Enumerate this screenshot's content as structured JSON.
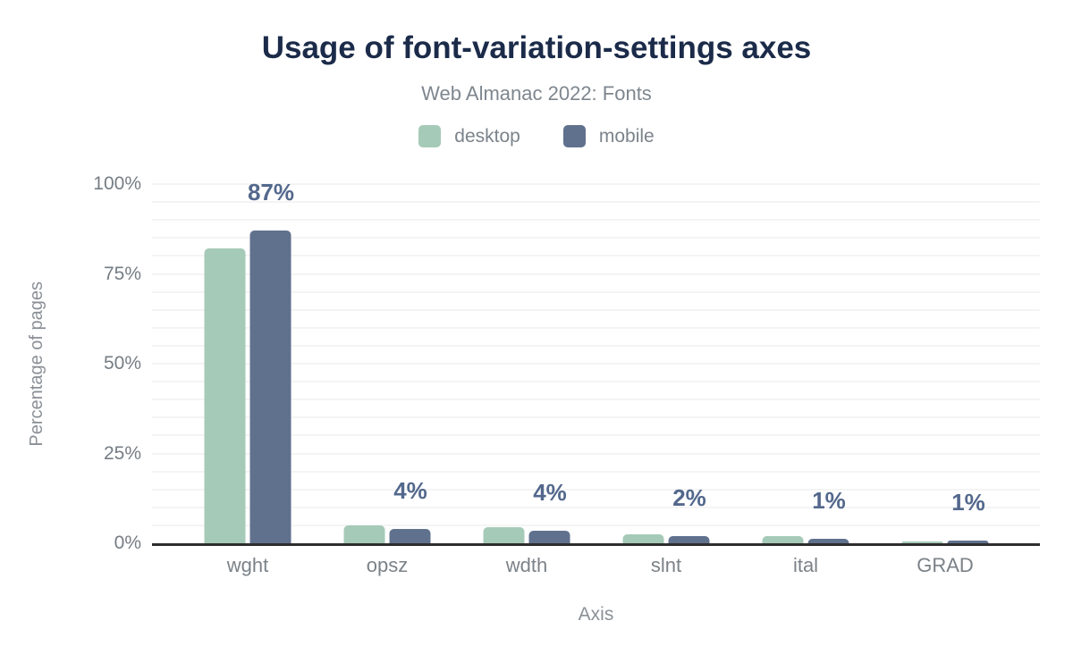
{
  "chart_data": {
    "type": "bar",
    "title": "Usage of font-variation-settings axes",
    "subtitle": "Web Almanac 2022: Fonts",
    "xlabel": "Axis",
    "ylabel": "Percentage of pages",
    "ylim": [
      0,
      100
    ],
    "y_ticks": [
      {
        "label": "0%",
        "pct": 0
      },
      {
        "label": "25%",
        "pct": 25
      },
      {
        "label": "50%",
        "pct": 50
      },
      {
        "label": "75%",
        "pct": 75
      },
      {
        "label": "100%",
        "pct": 100
      }
    ],
    "minor_gridline_step_pct": 5,
    "grid": true,
    "legend_position": "top",
    "categories": [
      "wght",
      "opsz",
      "wdth",
      "slnt",
      "ital",
      "GRAD"
    ],
    "series": [
      {
        "name": "desktop",
        "color": "#a6cab8",
        "values": [
          82,
          5,
          4.5,
          2.5,
          2,
          0.6
        ]
      },
      {
        "name": "mobile",
        "color": "#5f718d",
        "values": [
          87,
          4,
          3.5,
          2,
          1.2,
          0.8
        ]
      }
    ],
    "data_labels": [
      "87%",
      "4%",
      "4%",
      "2%",
      "1%",
      "1%"
    ],
    "data_label_series": "mobile"
  },
  "colors": {
    "background": "#ffffff",
    "title": "#1b2b49",
    "subtitle": "#7e868e",
    "legend_label": "#7b838b",
    "tick_label": "#757d84",
    "category_label": "#7b8288",
    "axis_label": "#8a9096",
    "data_label": "#53688c",
    "gridline": "#f4f4f4",
    "axis_line": "#2e2e2e"
  }
}
